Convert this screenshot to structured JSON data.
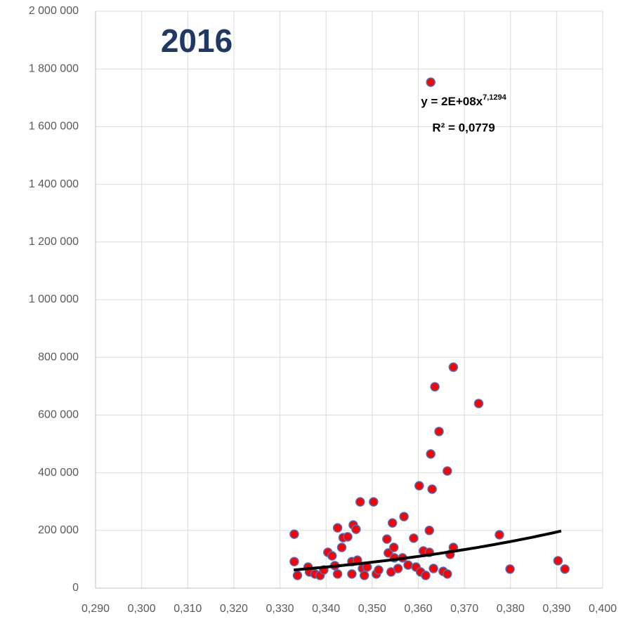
{
  "chart_data": {
    "type": "scatter",
    "title": "2016",
    "color": "#ff0000",
    "edgecolor": "#4472c4",
    "grid": true,
    "xlim": [
      0.29,
      0.4
    ],
    "ylim": [
      0,
      2000000
    ],
    "xticks": [
      {
        "value": 0.29,
        "label": "0,290"
      },
      {
        "value": 0.3,
        "label": "0,300"
      },
      {
        "value": 0.31,
        "label": "0,310"
      },
      {
        "value": 0.32,
        "label": "0,320"
      },
      {
        "value": 0.33,
        "label": "0,330"
      },
      {
        "value": 0.34,
        "label": "0,340"
      },
      {
        "value": 0.35,
        "label": "0,350"
      },
      {
        "value": 0.36,
        "label": "0,360"
      },
      {
        "value": 0.37,
        "label": "0,370"
      },
      {
        "value": 0.38,
        "label": "0,380"
      },
      {
        "value": 0.39,
        "label": "0,390"
      },
      {
        "value": 0.4,
        "label": "0,400"
      }
    ],
    "yticks": [
      0,
      {
        "value": 200000,
        "label": "200 000"
      },
      {
        "value": 400000,
        "label": "400 000"
      },
      {
        "value": 600000,
        "label": "600 000"
      },
      {
        "value": 800000,
        "label": "800 000"
      },
      {
        "value": 1000000,
        "label": "1 000 000"
      },
      {
        "value": 1200000,
        "label": "1 200 000"
      },
      {
        "value": 1400000,
        "label": "1 400 000"
      },
      {
        "value": 1600000,
        "label": "1 600 000"
      },
      {
        "value": 1800000,
        "label": "1 800 000"
      },
      {
        "value": 2000000,
        "label": "2 000 000"
      }
    ],
    "x": [
      0.3331,
      0.3331,
      0.3338,
      0.3361,
      0.3364,
      0.3376,
      0.3387,
      0.3395,
      0.3404,
      0.3413,
      0.3419,
      0.3425,
      0.3425,
      0.3434,
      0.3437,
      0.3447,
      0.3456,
      0.3459,
      0.3465,
      0.3468,
      0.3456,
      0.3474,
      0.3479,
      0.3483,
      0.3489,
      0.3503,
      0.3509,
      0.3514,
      0.3532,
      0.3535,
      0.3541,
      0.3544,
      0.3547,
      0.3548,
      0.3556,
      0.3566,
      0.3569,
      0.3578,
      0.359,
      0.3595,
      0.3602,
      0.3605,
      0.3611,
      0.3616,
      0.3624,
      0.3624,
      0.3627,
      0.3627,
      0.363,
      0.3633,
      0.3636,
      0.3645,
      0.3654,
      0.3663,
      0.3663,
      0.3669,
      0.3676,
      0.3676,
      0.3731,
      0.3776,
      0.3799,
      0.3903,
      0.3918
    ],
    "values": [
      187000,
      92000,
      44000,
      73000,
      56000,
      49000,
      44000,
      63000,
      124000,
      112000,
      78000,
      209000,
      49000,
      141000,
      175000,
      178000,
      92000,
      219000,
      204000,
      97000,
      49000,
      299000,
      68000,
      44000,
      73000,
      299000,
      49000,
      63000,
      170000,
      122000,
      56000,
      226000,
      141000,
      105000,
      68000,
      105000,
      248000,
      80000,
      173000,
      73000,
      355000,
      56000,
      129000,
      44000,
      124000,
      200000,
      1754000,
      465000,
      343000,
      68000,
      698000,
      543000,
      58000,
      406000,
      49000,
      117000,
      141000,
      766000,
      640000,
      185000,
      66000,
      95000,
      66000
    ],
    "trendline": {
      "a": 160000000,
      "b": 7.1294,
      "x": [
        0.333,
        0.391
      ],
      "equation": "y = 2E+08x",
      "exponent": "7,1294",
      "r2": "R² = 0,0779"
    }
  }
}
